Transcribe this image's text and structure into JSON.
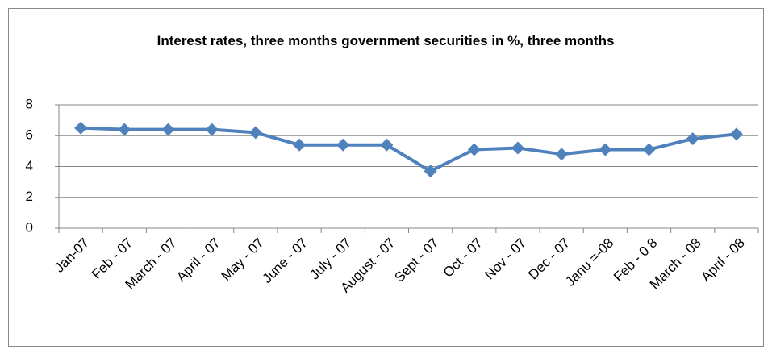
{
  "chart_data": {
    "type": "line",
    "title": "Interest rates, three months government securities in %, three months",
    "categories": [
      "Jan-07",
      "Feb - 07",
      "March - 07",
      "April - 07",
      "May - 07",
      "June - 07",
      "July - 07",
      "August - 07",
      "Sept - 07",
      "Oct - 07",
      "Nov - 07",
      "Dec - 07",
      "Janu =-08",
      "Feb - 0 8",
      "March - 08",
      "April - 08"
    ],
    "values": [
      6.5,
      6.4,
      6.4,
      6.4,
      6.2,
      5.4,
      5.4,
      5.4,
      3.7,
      5.1,
      5.2,
      4.8,
      5.1,
      5.1,
      5.8,
      6.1
    ],
    "color": "#4f81bd",
    "ylim": [
      0,
      8
    ],
    "yticks": [
      0,
      2,
      4,
      6,
      8
    ],
    "grid": true
  }
}
